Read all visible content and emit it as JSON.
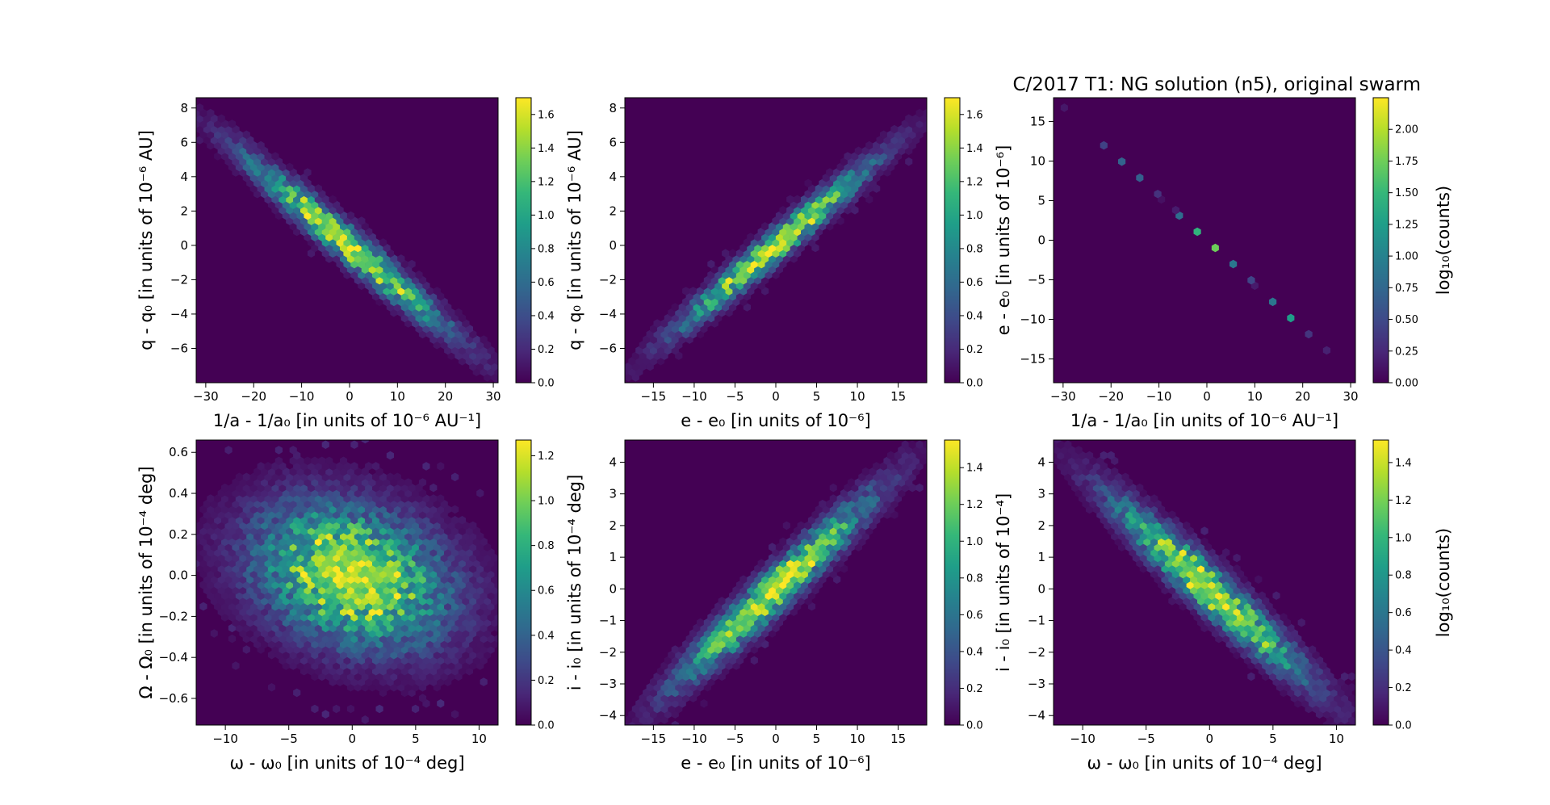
{
  "title": "C/2017 T1: NG solution (n5),  original swarm",
  "colormap": [
    "#440154",
    "#482878",
    "#3e4a89",
    "#31688e",
    "#26828e",
    "#1f9e89",
    "#35b779",
    "#6ece58",
    "#b5de2b",
    "#fde725"
  ],
  "chart_data": [
    {
      "type": "heatmap",
      "subtype": "hexbin",
      "xlabel": "1/a - 1/a₀ [in units of 10⁻⁶ AU⁻¹]",
      "ylabel": "q - q₀ [in units of 10⁻⁶ AU]",
      "xlim": [
        -32,
        31
      ],
      "ylim": [
        -8.0,
        8.6
      ],
      "xticks": [
        -30,
        -20,
        -10,
        0,
        10,
        20,
        30
      ],
      "xtick_labels": [
        "−30",
        "−20",
        "−10",
        "0",
        "10",
        "20",
        "30"
      ],
      "yticks": [
        -6,
        -4,
        -2,
        0,
        2,
        4,
        6,
        8
      ],
      "ytick_labels": [
        "−6",
        "−4",
        "−2",
        "0",
        "2",
        "4",
        "6",
        "8"
      ],
      "distribution": {
        "slope": -0.235,
        "intercept": 0.0,
        "spread_x": 10.0,
        "spread_perp": 0.55,
        "max_log_count": 1.7
      },
      "colorbar": {
        "label": "",
        "min": 0.0,
        "max": 1.7,
        "ticks": [
          0.0,
          0.2,
          0.4,
          0.6,
          0.8,
          1.0,
          1.2,
          1.4,
          1.6
        ],
        "tick_labels": [
          "0.0",
          "0.2",
          "0.4",
          "0.6",
          "0.8",
          "1.0",
          "1.2",
          "1.4",
          "1.6"
        ]
      }
    },
    {
      "type": "heatmap",
      "subtype": "hexbin",
      "xlabel": "e - e₀ [in units of 10⁻⁶]",
      "ylabel": "q - q₀ [in units of 10⁻⁶ AU]",
      "xlim": [
        -18.5,
        18.5
      ],
      "ylim": [
        -8.0,
        8.6
      ],
      "xticks": [
        -15,
        -10,
        -5,
        0,
        5,
        10,
        15
      ],
      "xtick_labels": [
        "−15",
        "−10",
        "−5",
        "0",
        "5",
        "10",
        "15"
      ],
      "yticks": [
        -6,
        -4,
        -2,
        0,
        2,
        4,
        6,
        8
      ],
      "ytick_labels": [
        "−6",
        "−4",
        "−2",
        "0",
        "2",
        "4",
        "6",
        "8"
      ],
      "distribution": {
        "slope": 0.4,
        "intercept": 0.0,
        "spread_x": 5.6,
        "spread_perp": 0.5,
        "max_log_count": 1.7
      },
      "colorbar": {
        "label": "",
        "min": 0.0,
        "max": 1.7,
        "ticks": [
          0.0,
          0.2,
          0.4,
          0.6,
          0.8,
          1.0,
          1.2,
          1.4,
          1.6
        ],
        "tick_labels": [
          "0.0",
          "0.2",
          "0.4",
          "0.6",
          "0.8",
          "1.0",
          "1.2",
          "1.4",
          "1.6"
        ]
      }
    },
    {
      "type": "heatmap",
      "subtype": "hexbin",
      "xlabel": "1/a - 1/a₀ [in units of 10⁻⁶ AU⁻¹]",
      "ylabel": "e - e₀ [in units of 10⁻⁶]",
      "xlim": [
        -32,
        31
      ],
      "ylim": [
        -18,
        18
      ],
      "xticks": [
        -30,
        -20,
        -10,
        0,
        10,
        20,
        30
      ],
      "xtick_labels": [
        "−30",
        "−20",
        "−10",
        "0",
        "10",
        "20",
        "30"
      ],
      "yticks": [
        -15,
        -10,
        -5,
        0,
        5,
        10,
        15
      ],
      "ytick_labels": [
        "−15",
        "−10",
        "−5",
        "0",
        "5",
        "10",
        "15"
      ],
      "distribution": {
        "slope": -0.56,
        "intercept": 0.0,
        "spread_x": 10.0,
        "spread_perp": 0.05,
        "max_log_count": 2.25
      },
      "colorbar": {
        "label": "log₁₀(counts)",
        "min": 0.0,
        "max": 2.25,
        "ticks": [
          0.0,
          0.25,
          0.5,
          0.75,
          1.0,
          1.25,
          1.5,
          1.75,
          2.0
        ],
        "tick_labels": [
          "0.00",
          "0.25",
          "0.50",
          "0.75",
          "1.00",
          "1.25",
          "1.50",
          "1.75",
          "2.00"
        ]
      }
    },
    {
      "type": "heatmap",
      "subtype": "hexbin",
      "xlabel": "ω - ω₀ [in units of 10⁻⁴ deg]",
      "ylabel": "Ω - Ω₀ [in units of 10⁻⁴ deg]",
      "xlim": [
        -12.3,
        11.5
      ],
      "ylim": [
        -0.73,
        0.66
      ],
      "xticks": [
        -10,
        -5,
        0,
        5,
        10
      ],
      "xtick_labels": [
        "−10",
        "−5",
        "0",
        "5",
        "10"
      ],
      "yticks": [
        -0.6,
        -0.4,
        -0.2,
        0.0,
        0.2,
        0.4,
        0.6
      ],
      "ytick_labels": [
        "−0.6",
        "−0.4",
        "−0.2",
        "0.0",
        "0.2",
        "0.4",
        "0.6"
      ],
      "distribution": {
        "slope": -0.012,
        "intercept": 0.0,
        "spread_x": 3.6,
        "spread_perp": 0.16,
        "max_log_count": 1.27
      },
      "colorbar": {
        "label": "",
        "min": 0.0,
        "max": 1.27,
        "ticks": [
          0.0,
          0.2,
          0.4,
          0.6,
          0.8,
          1.0,
          1.2
        ],
        "tick_labels": [
          "0.0",
          "0.2",
          "0.4",
          "0.6",
          "0.8",
          "1.0",
          "1.2"
        ]
      }
    },
    {
      "type": "heatmap",
      "subtype": "hexbin",
      "xlabel": "e - e₀ [in units of 10⁻⁶]",
      "ylabel": "i - i₀ [in units of 10⁻⁴ deg]",
      "xlim": [
        -18.5,
        18.5
      ],
      "ylim": [
        -4.3,
        4.7
      ],
      "xticks": [
        -15,
        -10,
        -5,
        0,
        5,
        10,
        15
      ],
      "xtick_labels": [
        "−15",
        "−10",
        "−5",
        "0",
        "5",
        "10",
        "15"
      ],
      "yticks": [
        -4,
        -3,
        -2,
        -1,
        0,
        1,
        2,
        3,
        4
      ],
      "ytick_labels": [
        "−4",
        "−3",
        "−2",
        "−1",
        "0",
        "1",
        "2",
        "3",
        "4"
      ],
      "distribution": {
        "slope": 0.24,
        "intercept": 0.0,
        "spread_x": 5.6,
        "spread_perp": 0.38,
        "max_log_count": 1.55
      },
      "colorbar": {
        "label": "",
        "min": 0.0,
        "max": 1.55,
        "ticks": [
          0.0,
          0.2,
          0.4,
          0.6,
          0.8,
          1.0,
          1.2,
          1.4
        ],
        "tick_labels": [
          "0.0",
          "0.2",
          "0.4",
          "0.6",
          "0.8",
          "1.0",
          "1.2",
          "1.4"
        ]
      }
    },
    {
      "type": "heatmap",
      "subtype": "hexbin",
      "xlabel": "ω - ω₀ [in units of 10⁻⁴ deg]",
      "ylabel": "i - i₀ [in units of 10⁻⁴]",
      "xlim": [
        -12.3,
        11.5
      ],
      "ylim": [
        -4.3,
        4.7
      ],
      "xticks": [
        -10,
        -5,
        0,
        5,
        10
      ],
      "xtick_labels": [
        "−10",
        "−5",
        "0",
        "5",
        "10"
      ],
      "yticks": [
        -4,
        -3,
        -2,
        -1,
        0,
        1,
        2,
        3,
        4
      ],
      "ytick_labels": [
        "−4",
        "−3",
        "−2",
        "−1",
        "0",
        "1",
        "2",
        "3",
        "4"
      ],
      "distribution": {
        "slope": -0.36,
        "intercept": 0.0,
        "spread_x": 3.6,
        "spread_perp": 0.4,
        "max_log_count": 1.52
      },
      "colorbar": {
        "label": "log₁₀(counts)",
        "min": 0.0,
        "max": 1.52,
        "ticks": [
          0.0,
          0.2,
          0.4,
          0.6,
          0.8,
          1.0,
          1.2,
          1.4
        ],
        "tick_labels": [
          "0.0",
          "0.2",
          "0.4",
          "0.6",
          "0.8",
          "1.0",
          "1.2",
          "1.4"
        ]
      }
    }
  ]
}
